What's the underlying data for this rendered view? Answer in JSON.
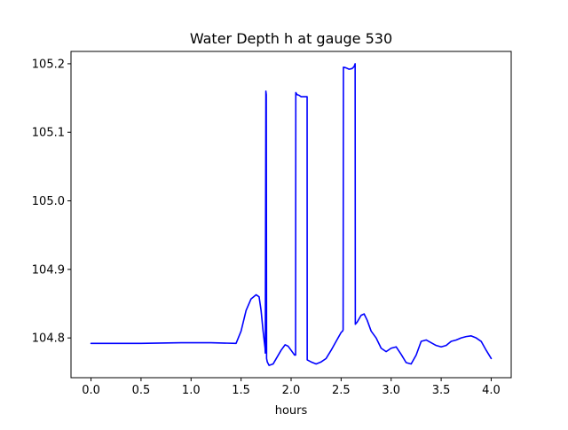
{
  "chart_data": {
    "type": "line",
    "title": "Water Depth h at gauge 530",
    "xlabel": "hours",
    "ylabel": "",
    "xlim": [
      -0.2,
      4.2
    ],
    "ylim": [
      104.742,
      105.218
    ],
    "xticks": [
      0.0,
      0.5,
      1.0,
      1.5,
      2.0,
      2.5,
      3.0,
      3.5,
      4.0
    ],
    "xtick_labels": [
      "0.0",
      "0.5",
      "1.0",
      "1.5",
      "2.0",
      "2.5",
      "3.0",
      "3.5",
      "4.0"
    ],
    "yticks": [
      104.8,
      104.9,
      105.0,
      105.1,
      105.2
    ],
    "ytick_labels": [
      "104.8",
      "104.9",
      "105.0",
      "105.1",
      "105.2"
    ],
    "grid": false,
    "series": [
      {
        "color": "#0000ff",
        "x": [
          0.0,
          0.5,
          0.9,
          1.2,
          1.45,
          1.5,
          1.55,
          1.6,
          1.65,
          1.68,
          1.7,
          1.72,
          1.74,
          1.742,
          1.748,
          1.752,
          1.755,
          1.762,
          1.78,
          1.82,
          1.86,
          1.9,
          1.94,
          1.97,
          2.0,
          2.02,
          2.035,
          2.045,
          2.047,
          2.06,
          2.08,
          2.1,
          2.14,
          2.16,
          2.161,
          2.2,
          2.25,
          2.3,
          2.35,
          2.4,
          2.45,
          2.5,
          2.515,
          2.52,
          2.523,
          2.55,
          2.58,
          2.61,
          2.63,
          2.64,
          2.642,
          2.66,
          2.7,
          2.73,
          2.76,
          2.8,
          2.85,
          2.9,
          2.95,
          3.0,
          3.05,
          3.1,
          3.15,
          3.2,
          3.25,
          3.3,
          3.35,
          3.4,
          3.45,
          3.5,
          3.55,
          3.6,
          3.65,
          3.7,
          3.75,
          3.8,
          3.85,
          3.9,
          3.95,
          4.0
        ],
        "y": [
          104.792,
          104.792,
          104.793,
          104.793,
          104.792,
          104.81,
          104.84,
          104.857,
          104.863,
          104.86,
          104.84,
          104.81,
          104.785,
          104.778,
          105.16,
          105.155,
          104.77,
          104.765,
          104.76,
          104.762,
          104.772,
          104.782,
          104.79,
          104.788,
          104.782,
          104.778,
          104.775,
          104.775,
          105.158,
          105.155,
          105.154,
          105.152,
          105.152,
          105.152,
          104.768,
          104.765,
          104.762,
          104.765,
          104.77,
          104.782,
          104.795,
          104.808,
          104.81,
          104.812,
          105.195,
          105.194,
          105.192,
          105.193,
          105.196,
          105.2,
          104.82,
          104.823,
          104.833,
          104.835,
          104.826,
          104.81,
          104.8,
          104.785,
          104.78,
          104.785,
          104.787,
          104.776,
          104.764,
          104.762,
          104.775,
          104.795,
          104.797,
          104.793,
          104.789,
          104.787,
          104.789,
          104.795,
          104.797,
          104.8,
          104.802,
          104.803,
          104.8,
          104.795,
          104.782,
          104.77
        ]
      }
    ]
  }
}
